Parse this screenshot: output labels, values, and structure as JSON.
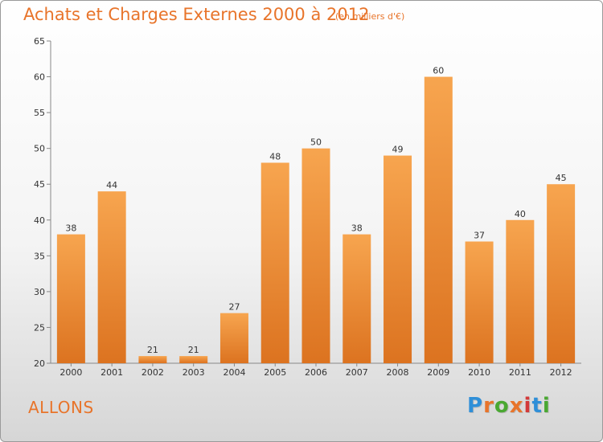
{
  "title": "Achats et Charges Externes 2000 à 2012",
  "subtitle": "(en milliers d'€)",
  "place": "ALLONS",
  "logo": {
    "letters": [
      "P",
      "r",
      "o",
      "x",
      "i",
      "t",
      "i"
    ],
    "colors": [
      "#2f8fd8",
      "#e8742a",
      "#4aa832",
      "#e8742a",
      "#d33a3a",
      "#2f8fd8",
      "#4aa832"
    ]
  },
  "colors": {
    "accent": "#e8742a",
    "bar_top": "#f7a54f",
    "bar_bottom": "#dc7320"
  },
  "chart_data": {
    "type": "bar",
    "categories": [
      "2000",
      "2001",
      "2002",
      "2003",
      "2004",
      "2005",
      "2006",
      "2007",
      "2008",
      "2009",
      "2010",
      "2011",
      "2012"
    ],
    "values": [
      38,
      44,
      21,
      21,
      27,
      48,
      50,
      38,
      49,
      60,
      37,
      40,
      45
    ],
    "ylim": [
      20,
      65
    ],
    "yticks": [
      20,
      25,
      30,
      35,
      40,
      45,
      50,
      55,
      60,
      65
    ],
    "grid": false
  }
}
